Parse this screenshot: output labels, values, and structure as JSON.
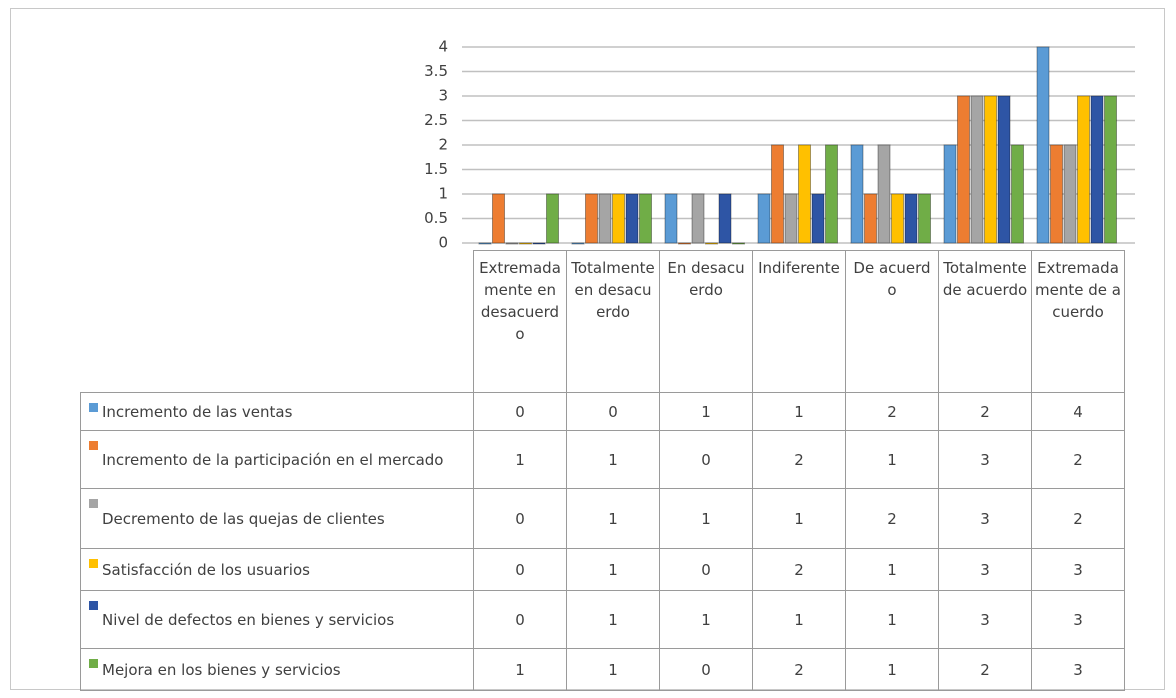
{
  "chart_data": {
    "type": "bar",
    "categories": [
      "Extremadamente en desacuerdo",
      "Totalmente en desacuerdo",
      "En desacuerdo",
      "Indiferente",
      "De acuerdo",
      "Totalmente de acuerdo",
      "Extremadamente de acuerdo"
    ],
    "series": [
      {
        "name": "Incremento de las ventas",
        "color": "#5b9bd5",
        "values": [
          0,
          0,
          1,
          1,
          2,
          2,
          4
        ]
      },
      {
        "name": "Incremento de la participación en el mercado",
        "color": "#ed7d31",
        "values": [
          1,
          1,
          0,
          2,
          1,
          3,
          2
        ]
      },
      {
        "name": "Decremento de las quejas de clientes",
        "color": "#a5a5a5",
        "values": [
          0,
          1,
          1,
          1,
          2,
          3,
          2
        ]
      },
      {
        "name": "Satisfacción de los usuarios",
        "color": "#ffc000",
        "values": [
          0,
          1,
          0,
          2,
          1,
          3,
          3
        ]
      },
      {
        "name": "Nivel de defectos en bienes y servicios",
        "color": "#2e55a5",
        "values": [
          0,
          1,
          1,
          1,
          1,
          3,
          3
        ]
      },
      {
        "name": "Mejora en los bienes y servicios",
        "color": "#70ad47",
        "values": [
          1,
          1,
          0,
          2,
          1,
          2,
          3
        ]
      }
    ],
    "ylim": [
      0,
      4
    ],
    "yticks": [
      0,
      0.5,
      1,
      1.5,
      2,
      2.5,
      3,
      3.5,
      4
    ],
    "grid": true,
    "data_table": true
  }
}
